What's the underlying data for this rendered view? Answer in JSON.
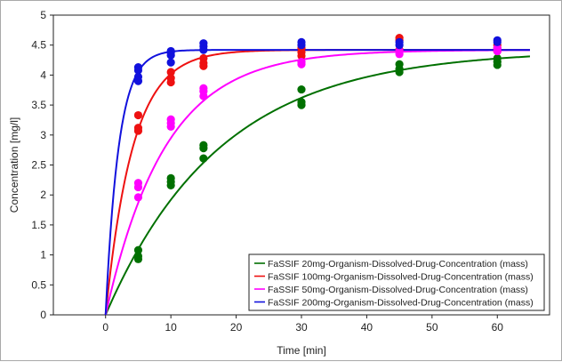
{
  "chart_data": {
    "type": "scatter",
    "title": "",
    "xlabel": "Time [min]",
    "ylabel": "Concentration [mg/l]",
    "xlim": [
      -8,
      68
    ],
    "ylim": [
      0,
      5
    ],
    "xticks": [
      "0",
      "10",
      "20",
      "30",
      "40",
      "50",
      "60"
    ],
    "yticks": [
      "0",
      "0.5",
      "1",
      "1.5",
      "2",
      "2.5",
      "3",
      "3.5",
      "4",
      "4.5",
      "5"
    ],
    "grid": false,
    "legend_position": "bottom-right",
    "series": [
      {
        "name": "FaSSIF 20mg-Organism-Dissolved-Drug-Concentration (mass)",
        "color": "#007000",
        "fit": {
          "ymax": 4.42,
          "k": 0.057,
          "x_end": 65
        },
        "points": [
          [
            5,
            1.08
          ],
          [
            5,
            0.98
          ],
          [
            5,
            0.93
          ],
          [
            10,
            2.28
          ],
          [
            10,
            2.22
          ],
          [
            10,
            2.16
          ],
          [
            15,
            2.83
          ],
          [
            15,
            2.78
          ],
          [
            15,
            2.61
          ],
          [
            30,
            3.76
          ],
          [
            30,
            3.55
          ],
          [
            30,
            3.5
          ],
          [
            45,
            4.18
          ],
          [
            45,
            4.1
          ],
          [
            45,
            4.05
          ],
          [
            60,
            4.28
          ],
          [
            60,
            4.22
          ],
          [
            60,
            4.17
          ]
        ]
      },
      {
        "name": "FaSSIF 100mg-Organism-Dissolved-Drug-Concentration (mass)",
        "color": "#ee1111",
        "fit": {
          "ymax": 4.42,
          "k": 0.24,
          "x_end": 65
        },
        "points": [
          [
            5,
            3.33
          ],
          [
            5,
            3.12
          ],
          [
            5,
            3.07
          ],
          [
            10,
            4.05
          ],
          [
            10,
            3.95
          ],
          [
            10,
            3.88
          ],
          [
            15,
            4.28
          ],
          [
            15,
            4.2
          ],
          [
            15,
            4.15
          ],
          [
            30,
            4.45
          ],
          [
            30,
            4.38
          ],
          [
            30,
            4.32
          ],
          [
            45,
            4.62
          ],
          [
            45,
            4.58
          ],
          [
            45,
            4.42
          ],
          [
            60,
            4.5
          ],
          [
            60,
            4.45
          ],
          [
            60,
            4.4
          ]
        ]
      },
      {
        "name": "FaSSIF 50mg-Organism-Dissolved-Drug-Concentration (mass)",
        "color": "#ff00ff",
        "fit": {
          "ymax": 4.42,
          "k": 0.11,
          "x_end": 65
        },
        "points": [
          [
            5,
            2.2
          ],
          [
            5,
            2.13
          ],
          [
            5,
            1.96
          ],
          [
            10,
            3.26
          ],
          [
            10,
            3.2
          ],
          [
            10,
            3.14
          ],
          [
            15,
            3.78
          ],
          [
            15,
            3.73
          ],
          [
            15,
            3.65
          ],
          [
            30,
            4.22
          ],
          [
            30,
            4.18
          ],
          [
            45,
            4.4
          ],
          [
            45,
            4.35
          ],
          [
            60,
            4.45
          ],
          [
            60,
            4.4
          ]
        ]
      },
      {
        "name": "FaSSIF 200mg-Organism-Dissolved-Drug-Concentration (mass)",
        "color": "#1111dd",
        "fit": {
          "ymax": 4.42,
          "k": 0.5,
          "x_end": 65
        },
        "points": [
          [
            5,
            4.13
          ],
          [
            5,
            4.08
          ],
          [
            5,
            3.97
          ],
          [
            5,
            3.9
          ],
          [
            10,
            4.4
          ],
          [
            10,
            4.38
          ],
          [
            10,
            4.33
          ],
          [
            10,
            4.21
          ],
          [
            15,
            4.53
          ],
          [
            15,
            4.48
          ],
          [
            15,
            4.42
          ],
          [
            30,
            4.55
          ],
          [
            30,
            4.5
          ],
          [
            45,
            4.55
          ],
          [
            45,
            4.5
          ],
          [
            60,
            4.58
          ],
          [
            60,
            4.55
          ]
        ]
      }
    ]
  }
}
